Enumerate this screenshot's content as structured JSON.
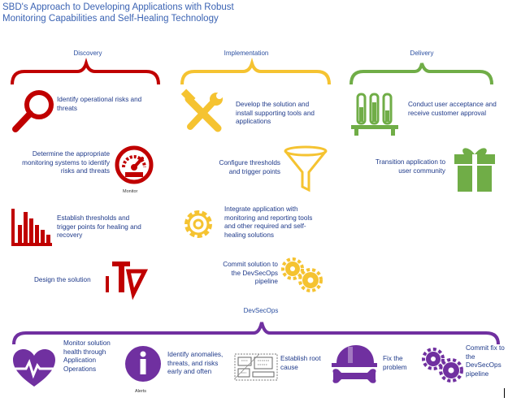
{
  "title": "SBD's Approach to Developing Applications with Robust Monitoring Capabilities and Self-Healing Technology",
  "colors": {
    "discovery": "#c00000",
    "implementation": "#f5c331",
    "delivery": "#70ad47",
    "devsecops": "#7030a0",
    "text": "#1f3a8a"
  },
  "discovery": {
    "header": "Discovery",
    "items": [
      {
        "text": "Identify operational risks and threats",
        "icon": "magnifier-icon"
      },
      {
        "text": "Determine the appropriate monitoring systems to identify risks and threats",
        "icon": "gauge-icon",
        "icon_label": "Monitor"
      },
      {
        "text": "Establish thresholds and trigger points for healing and recovery",
        "icon": "bar-chart-icon"
      },
      {
        "text": "Design the solution",
        "icon": "design-tools-icon"
      }
    ]
  },
  "implementation": {
    "header": "Implementation",
    "items": [
      {
        "text": "Develop the solution and install supporting tools and applications",
        "icon": "tools-icon"
      },
      {
        "text": "Configure thresholds and trigger points",
        "icon": "funnel-icon"
      },
      {
        "text": "Integrate application with monitoring and reporting tools and other required and self-healing solutions",
        "icon": "gear-icon"
      },
      {
        "text": "Commit solution to the DevSecOps pipeline",
        "icon": "gears-icon"
      }
    ]
  },
  "delivery": {
    "header": "Delivery",
    "items": [
      {
        "text": "Conduct user acceptance and receive customer approval",
        "icon": "test-tubes-icon"
      },
      {
        "text": "Transition application to user community",
        "icon": "gift-icon"
      }
    ]
  },
  "devsecops": {
    "header": "DevSecOps",
    "items": [
      {
        "text": "Monitor solution health through Application Operations",
        "icon": "heart-monitor-icon"
      },
      {
        "text": "Identify anomalies, threats, and risks early and often",
        "icon": "info-alert-icon",
        "icon_label": "Alerts"
      },
      {
        "text": "Establish root cause",
        "icon": "blueprint-icon"
      },
      {
        "text": "Fix the problem",
        "icon": "hardhat-wrench-icon"
      },
      {
        "text": "Commit fix to the DevSecOps pipeline",
        "icon": "gears-icon"
      }
    ]
  }
}
